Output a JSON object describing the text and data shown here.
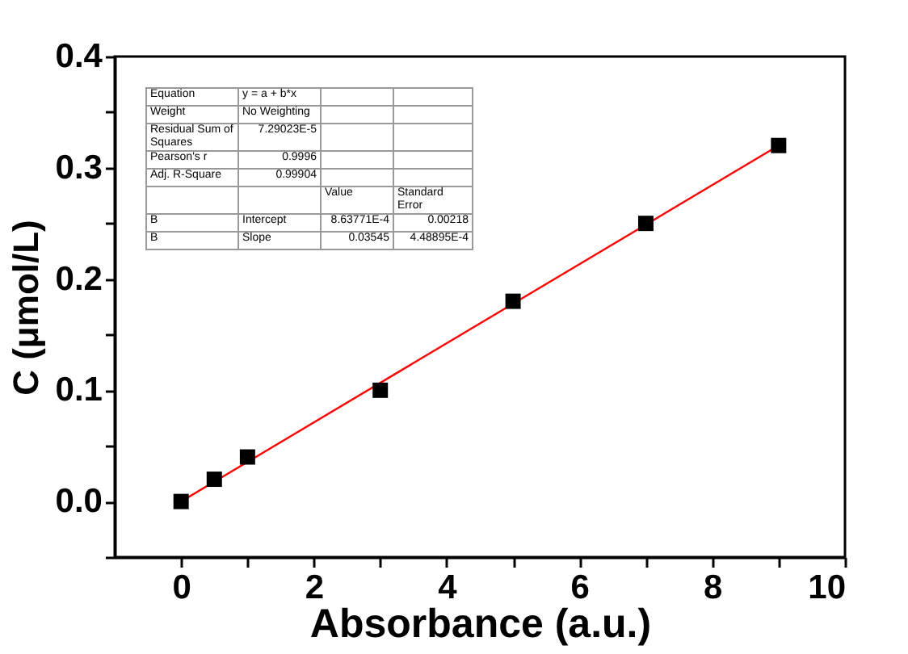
{
  "chart_data": {
    "type": "scatter",
    "xlabel": "Absorbance (a.u.)",
    "ylabel": "C (μmol/L)",
    "x": [
      0,
      0.5,
      1,
      3,
      5,
      7,
      9
    ],
    "series": [
      {
        "color": "#000000",
        "marker": "square",
        "values": [
          0,
          0.02,
          0.04,
          0.1,
          0.18,
          0.25,
          0.32
        ]
      },
      {
        "type": "line",
        "color": "#ff0000",
        "x": [
          0,
          9
        ],
        "values": [
          0,
          0.32
        ]
      }
    ],
    "xlim": [
      -1,
      10
    ],
    "xticks": [
      0,
      {
        "value": 1,
        "label": null
      },
      2,
      {
        "value": 3,
        "label": null
      },
      4,
      {
        "value": 5,
        "label": null
      },
      6,
      {
        "value": 7,
        "label": null
      },
      8,
      {
        "value": 9,
        "label": null
      },
      10
    ],
    "ylim": [
      -0.05,
      0.4
    ],
    "yticks": [
      {
        "value": -0.05,
        "label": null
      },
      {
        "value": 0,
        "label": "0.0"
      },
      {
        "value": 0.05,
        "label": null
      },
      0.1,
      {
        "value": 0.15,
        "label": null
      },
      0.2,
      {
        "value": 0.25,
        "label": null
      },
      0.3,
      {
        "value": 0.35,
        "label": null
      },
      0.4
    ],
    "grid": false,
    "annotations": [
      "Equation",
      "y = a + b*x",
      "Weight",
      "No Weighting",
      "Residual Sum of Squares",
      "7.29023E-5",
      "Pearson's r",
      "0.9996",
      "Adj. R-Square",
      "0.99904",
      "Value",
      "Standard Error",
      "B",
      "Intercept",
      "8.63771E-4",
      "0.00218",
      "B",
      "Slope",
      "0.03545",
      "4.48895E-4"
    ]
  }
}
